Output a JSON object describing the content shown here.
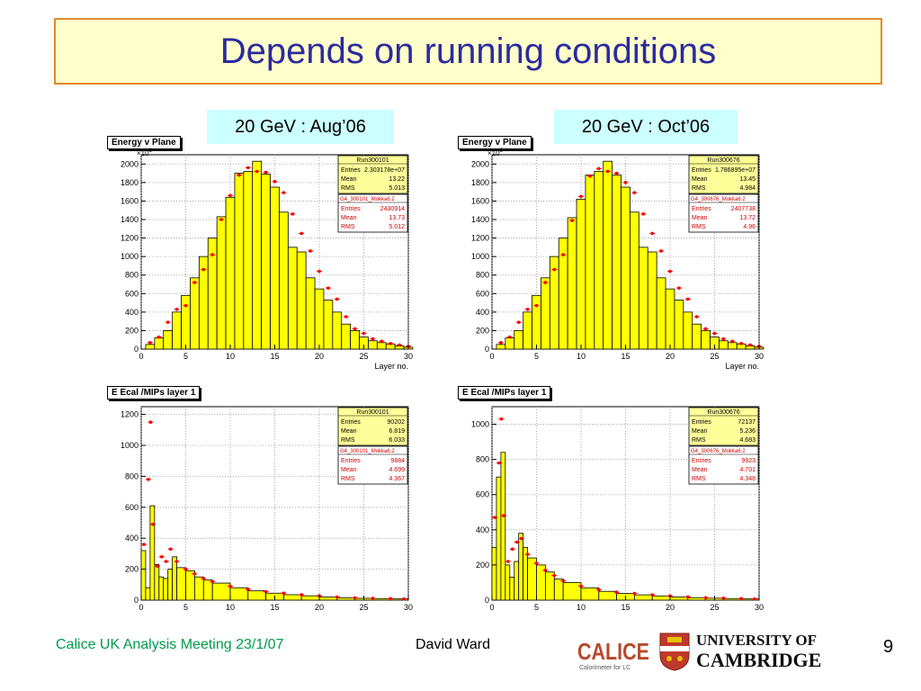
{
  "title": "Depends on running conditions",
  "footer": {
    "meeting": "Calice UK Analysis Meeting 23/1/07",
    "author": "David Ward",
    "page": "9"
  },
  "logos": {
    "calice_text": "CALICE",
    "calice_sub": "Calorimeter for LC",
    "cam_line1": "UNIVERSITY OF",
    "cam_line2": "CAMBRIDGE"
  },
  "captions": [
    "20 GeV : Aug’06",
    "20 GeV : Oct’06"
  ],
  "colors": {
    "hist_fill": "#ffff00",
    "points": "#ff0000",
    "title_text": "#2b2b9e",
    "footer_text": "#009a4e",
    "caption_bg": "#ccffff"
  },
  "chart_data": [
    {
      "type": "bar",
      "title": "Energy v Plane",
      "xlabel": "Layer no.",
      "exponent_label": "×10",
      "xlim": [
        0,
        30
      ],
      "ylim": [
        0,
        2100
      ],
      "xticks": [
        0,
        5,
        10,
        15,
        20,
        25,
        30
      ],
      "yticks": [
        0,
        200,
        400,
        600,
        800,
        1000,
        1200,
        1400,
        1600,
        1800,
        2000
      ],
      "bin_edges": [
        0.5,
        1.5,
        2.5,
        3.5,
        4.5,
        5.5,
        6.5,
        7.5,
        8.5,
        9.5,
        10.5,
        11.5,
        12.5,
        13.5,
        14.5,
        15.5,
        16.5,
        17.5,
        18.5,
        19.5,
        20.5,
        21.5,
        22.5,
        23.5,
        24.5,
        25.5,
        26.5,
        27.5,
        28.5,
        29.5,
        30.5
      ],
      "values": [
        50,
        120,
        200,
        400,
        580,
        770,
        1000,
        1200,
        1430,
        1640,
        1900,
        1920,
        2030,
        1890,
        1750,
        1480,
        1100,
        1050,
        770,
        650,
        530,
        400,
        270,
        200,
        130,
        90,
        70,
        55,
        35,
        20
      ],
      "points": [
        70,
        130,
        290,
        430,
        470,
        720,
        860,
        1020,
        1400,
        1660,
        1880,
        1960,
        1920,
        1910,
        1810,
        1690,
        1460,
        1250,
        1060,
        840,
        660,
        540,
        350,
        220,
        170,
        110,
        85,
        60,
        45,
        30
      ],
      "stats_mc": {
        "run": "Run300101",
        "rows": [
          [
            "Entries",
            "2.303178e+07"
          ],
          [
            "Mean",
            "13.22"
          ],
          [
            "RMS",
            "5.013"
          ]
        ]
      },
      "stats_data": {
        "label": "G4_300101_Mokka6.2",
        "rows": [
          [
            "Entries",
            "2430914"
          ],
          [
            "Mean",
            "13.73"
          ],
          [
            "RMS",
            "5.012"
          ]
        ]
      }
    },
    {
      "type": "bar",
      "title": "Energy v Plane",
      "xlabel": "Layer no.",
      "exponent_label": "×10",
      "xlim": [
        0,
        30
      ],
      "ylim": [
        0,
        2100
      ],
      "xticks": [
        0,
        5,
        10,
        15,
        20,
        25,
        30
      ],
      "yticks": [
        0,
        200,
        400,
        600,
        800,
        1000,
        1200,
        1400,
        1600,
        1800,
        2000
      ],
      "bin_edges": [
        0.5,
        1.5,
        2.5,
        3.5,
        4.5,
        5.5,
        6.5,
        7.5,
        8.5,
        9.5,
        10.5,
        11.5,
        12.5,
        13.5,
        14.5,
        15.5,
        16.5,
        17.5,
        18.5,
        19.5,
        20.5,
        21.5,
        22.5,
        23.5,
        24.5,
        25.5,
        26.5,
        27.5,
        28.5,
        29.5,
        30.5
      ],
      "values": [
        50,
        120,
        200,
        400,
        580,
        770,
        1000,
        1200,
        1420,
        1620,
        1880,
        1920,
        2030,
        1880,
        1750,
        1480,
        1100,
        1050,
        770,
        650,
        530,
        400,
        270,
        200,
        130,
        90,
        70,
        55,
        35,
        20
      ],
      "points": [
        70,
        130,
        290,
        430,
        470,
        720,
        860,
        1020,
        1390,
        1650,
        1870,
        1950,
        1920,
        1900,
        1800,
        1690,
        1460,
        1250,
        1060,
        840,
        660,
        540,
        350,
        220,
        170,
        110,
        85,
        60,
        45,
        30
      ],
      "stats_mc": {
        "run": "Run300676",
        "rows": [
          [
            "Entries",
            "1.786895e+07"
          ],
          [
            "Mean",
            "13.45"
          ],
          [
            "RMS",
            "4.984"
          ]
        ]
      },
      "stats_data": {
        "label": "G4_300676_Mokka6.2",
        "rows": [
          [
            "Entries",
            "2407738"
          ],
          [
            "Mean",
            "13.72"
          ],
          [
            "RMS",
            "4.96"
          ]
        ]
      }
    },
    {
      "type": "bar",
      "title": "E Ecal /MIPs layer 1",
      "xlim": [
        0,
        30
      ],
      "ylim": [
        0,
        1250
      ],
      "xticks": [
        0,
        5,
        10,
        15,
        20,
        25,
        30
      ],
      "yticks": [
        0,
        200,
        400,
        600,
        800,
        1000,
        1200
      ],
      "bin_edges": [
        0,
        0.5,
        1,
        1.5,
        2,
        2.5,
        3,
        3.5,
        4,
        5,
        6,
        7,
        8,
        10,
        12,
        14,
        16,
        18,
        20,
        22,
        24,
        26,
        28,
        30
      ],
      "values": [
        320,
        80,
        610,
        230,
        150,
        140,
        200,
        280,
        210,
        190,
        150,
        130,
        110,
        80,
        60,
        45,
        35,
        28,
        20,
        15,
        12,
        10,
        8
      ],
      "points": [
        [
          0.3,
          360
        ],
        [
          0.8,
          780
        ],
        [
          1.05,
          1150
        ],
        [
          1.3,
          490
        ],
        [
          1.8,
          220
        ],
        [
          2.3,
          280
        ],
        [
          2.8,
          250
        ],
        [
          3.3,
          330
        ],
        [
          4,
          250
        ],
        [
          5,
          200
        ],
        [
          6,
          170
        ],
        [
          7,
          140
        ],
        [
          8,
          120
        ],
        [
          10,
          90
        ],
        [
          12,
          70
        ],
        [
          14,
          55
        ],
        [
          16,
          45
        ],
        [
          18,
          35
        ],
        [
          20,
          28
        ],
        [
          22,
          20
        ],
        [
          24,
          15
        ],
        [
          26,
          12
        ],
        [
          28,
          10
        ],
        [
          29.5,
          8
        ]
      ],
      "stats_mc": {
        "run": "Run300101",
        "rows": [
          [
            "Entries",
            "90202"
          ],
          [
            "Mean",
            "6.819"
          ],
          [
            "RMS",
            "6.033"
          ]
        ]
      },
      "stats_data": {
        "label": "G4_300101_Mokka6.2",
        "rows": [
          [
            "Entries",
            "9884"
          ],
          [
            "Mean",
            "4.699"
          ],
          [
            "RMS",
            "4.367"
          ]
        ]
      }
    },
    {
      "type": "bar",
      "title": "E Ecal /MIPs layer 1",
      "xlim": [
        0,
        30
      ],
      "ylim": [
        0,
        1100
      ],
      "xticks": [
        0,
        5,
        10,
        15,
        20,
        25,
        30
      ],
      "yticks": [
        0,
        200,
        400,
        600,
        800,
        1000
      ],
      "bin_edges": [
        0,
        0.5,
        1,
        1.5,
        2,
        2.5,
        3,
        3.5,
        4,
        5,
        6,
        7,
        8,
        10,
        12,
        14,
        16,
        18,
        20,
        22,
        24,
        26,
        28,
        30
      ],
      "values": [
        300,
        700,
        840,
        200,
        130,
        220,
        380,
        300,
        240,
        200,
        160,
        120,
        100,
        70,
        50,
        38,
        30,
        24,
        18,
        14,
        11,
        9,
        7
      ],
      "points": [
        [
          0.3,
          470
        ],
        [
          0.8,
          780
        ],
        [
          1.05,
          1030
        ],
        [
          1.3,
          480
        ],
        [
          1.8,
          220
        ],
        [
          2.3,
          290
        ],
        [
          2.8,
          330
        ],
        [
          3.3,
          350
        ],
        [
          4,
          260
        ],
        [
          5,
          210
        ],
        [
          6,
          170
        ],
        [
          7,
          140
        ],
        [
          8,
          110
        ],
        [
          10,
          80
        ],
        [
          12,
          60
        ],
        [
          14,
          45
        ],
        [
          16,
          38
        ],
        [
          18,
          30
        ],
        [
          20,
          24
        ],
        [
          22,
          18
        ],
        [
          24,
          14
        ],
        [
          26,
          11
        ],
        [
          28,
          9
        ],
        [
          29.5,
          7
        ]
      ],
      "stats_mc": {
        "run": "Run300676",
        "rows": [
          [
            "Entries",
            "72137"
          ],
          [
            "Mean",
            "5.236"
          ],
          [
            "RMS",
            "4.683"
          ]
        ]
      },
      "stats_data": {
        "label": "G4_300676_Mokka6.2",
        "rows": [
          [
            "Entries",
            "9923"
          ],
          [
            "Mean",
            "4.701"
          ],
          [
            "RMS",
            "4.348"
          ]
        ]
      }
    }
  ]
}
